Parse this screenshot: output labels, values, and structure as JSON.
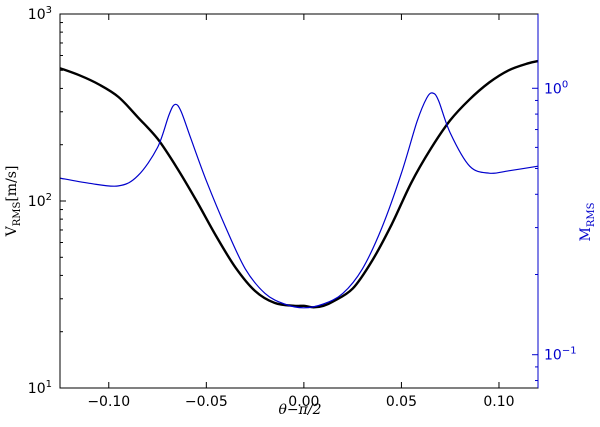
{
  "chart_data": {
    "type": "line",
    "title": "",
    "xlabel": "θ−π/2",
    "ylabel_left": {
      "main": "V",
      "sub": "RMS",
      "unit": "[m/s]"
    },
    "ylabel_right": {
      "main": "M",
      "sub": "RMS"
    },
    "xlim": [
      -0.125,
      0.12
    ],
    "ylim_left": [
      10,
      1000
    ],
    "yscale_left": "log",
    "ylim_right": [
      0.075,
      1.9
    ],
    "yscale_right": "log",
    "grid": false,
    "colors": {
      "vrms": "#000000",
      "mrms": "#0000cc",
      "right_axis": "#0000cc"
    },
    "x_ticks": [
      -0.1,
      -0.05,
      0.0,
      0.05,
      0.1
    ],
    "x_tick_labels": [
      "−0.10",
      "−0.05",
      "0.00",
      "0.05",
      "0.10"
    ],
    "left_ticks": [
      {
        "value": 10,
        "base": "10",
        "exp": "1"
      },
      {
        "value": 100,
        "base": "10",
        "exp": "2"
      },
      {
        "value": 1000,
        "base": "10",
        "exp": "3"
      }
    ],
    "right_ticks": [
      {
        "value": 0.1,
        "base": "10",
        "exp": "−1"
      },
      {
        "value": 1.0,
        "base": "10",
        "exp": "0"
      }
    ],
    "series": [
      {
        "axis": "left",
        "x": [
          -0.125,
          -0.115,
          -0.105,
          -0.095,
          -0.085,
          -0.075,
          -0.065,
          -0.055,
          -0.045,
          -0.035,
          -0.025,
          -0.015,
          -0.005,
          0.0,
          0.005,
          0.01,
          0.015,
          0.025,
          0.035,
          0.045,
          0.055,
          0.065,
          0.075,
          0.085,
          0.095,
          0.105,
          0.115,
          0.12
        ],
        "y": [
          513,
          470,
          420,
          360,
          280,
          215,
          150,
          100,
          65,
          44,
          33,
          28.5,
          27.5,
          27.5,
          27,
          27.5,
          29,
          34,
          48,
          75,
          125,
          190,
          270,
          350,
          430,
          500,
          545,
          560
        ]
      },
      {
        "axis": "right",
        "x": [
          -0.125,
          -0.11,
          -0.095,
          -0.085,
          -0.075,
          -0.069,
          -0.066,
          -0.063,
          -0.058,
          -0.05,
          -0.04,
          -0.03,
          -0.02,
          -0.01,
          0.0,
          0.01,
          0.02,
          0.03,
          0.04,
          0.05,
          0.058,
          0.063,
          0.066,
          0.069,
          0.075,
          0.085,
          0.095,
          0.105,
          0.12
        ],
        "y": [
          0.46,
          0.44,
          0.43,
          0.47,
          0.6,
          0.8,
          0.87,
          0.82,
          0.65,
          0.45,
          0.3,
          0.21,
          0.17,
          0.155,
          0.15,
          0.155,
          0.17,
          0.21,
          0.3,
          0.48,
          0.75,
          0.92,
          0.96,
          0.9,
          0.68,
          0.51,
          0.48,
          0.49,
          0.51
        ]
      }
    ]
  }
}
